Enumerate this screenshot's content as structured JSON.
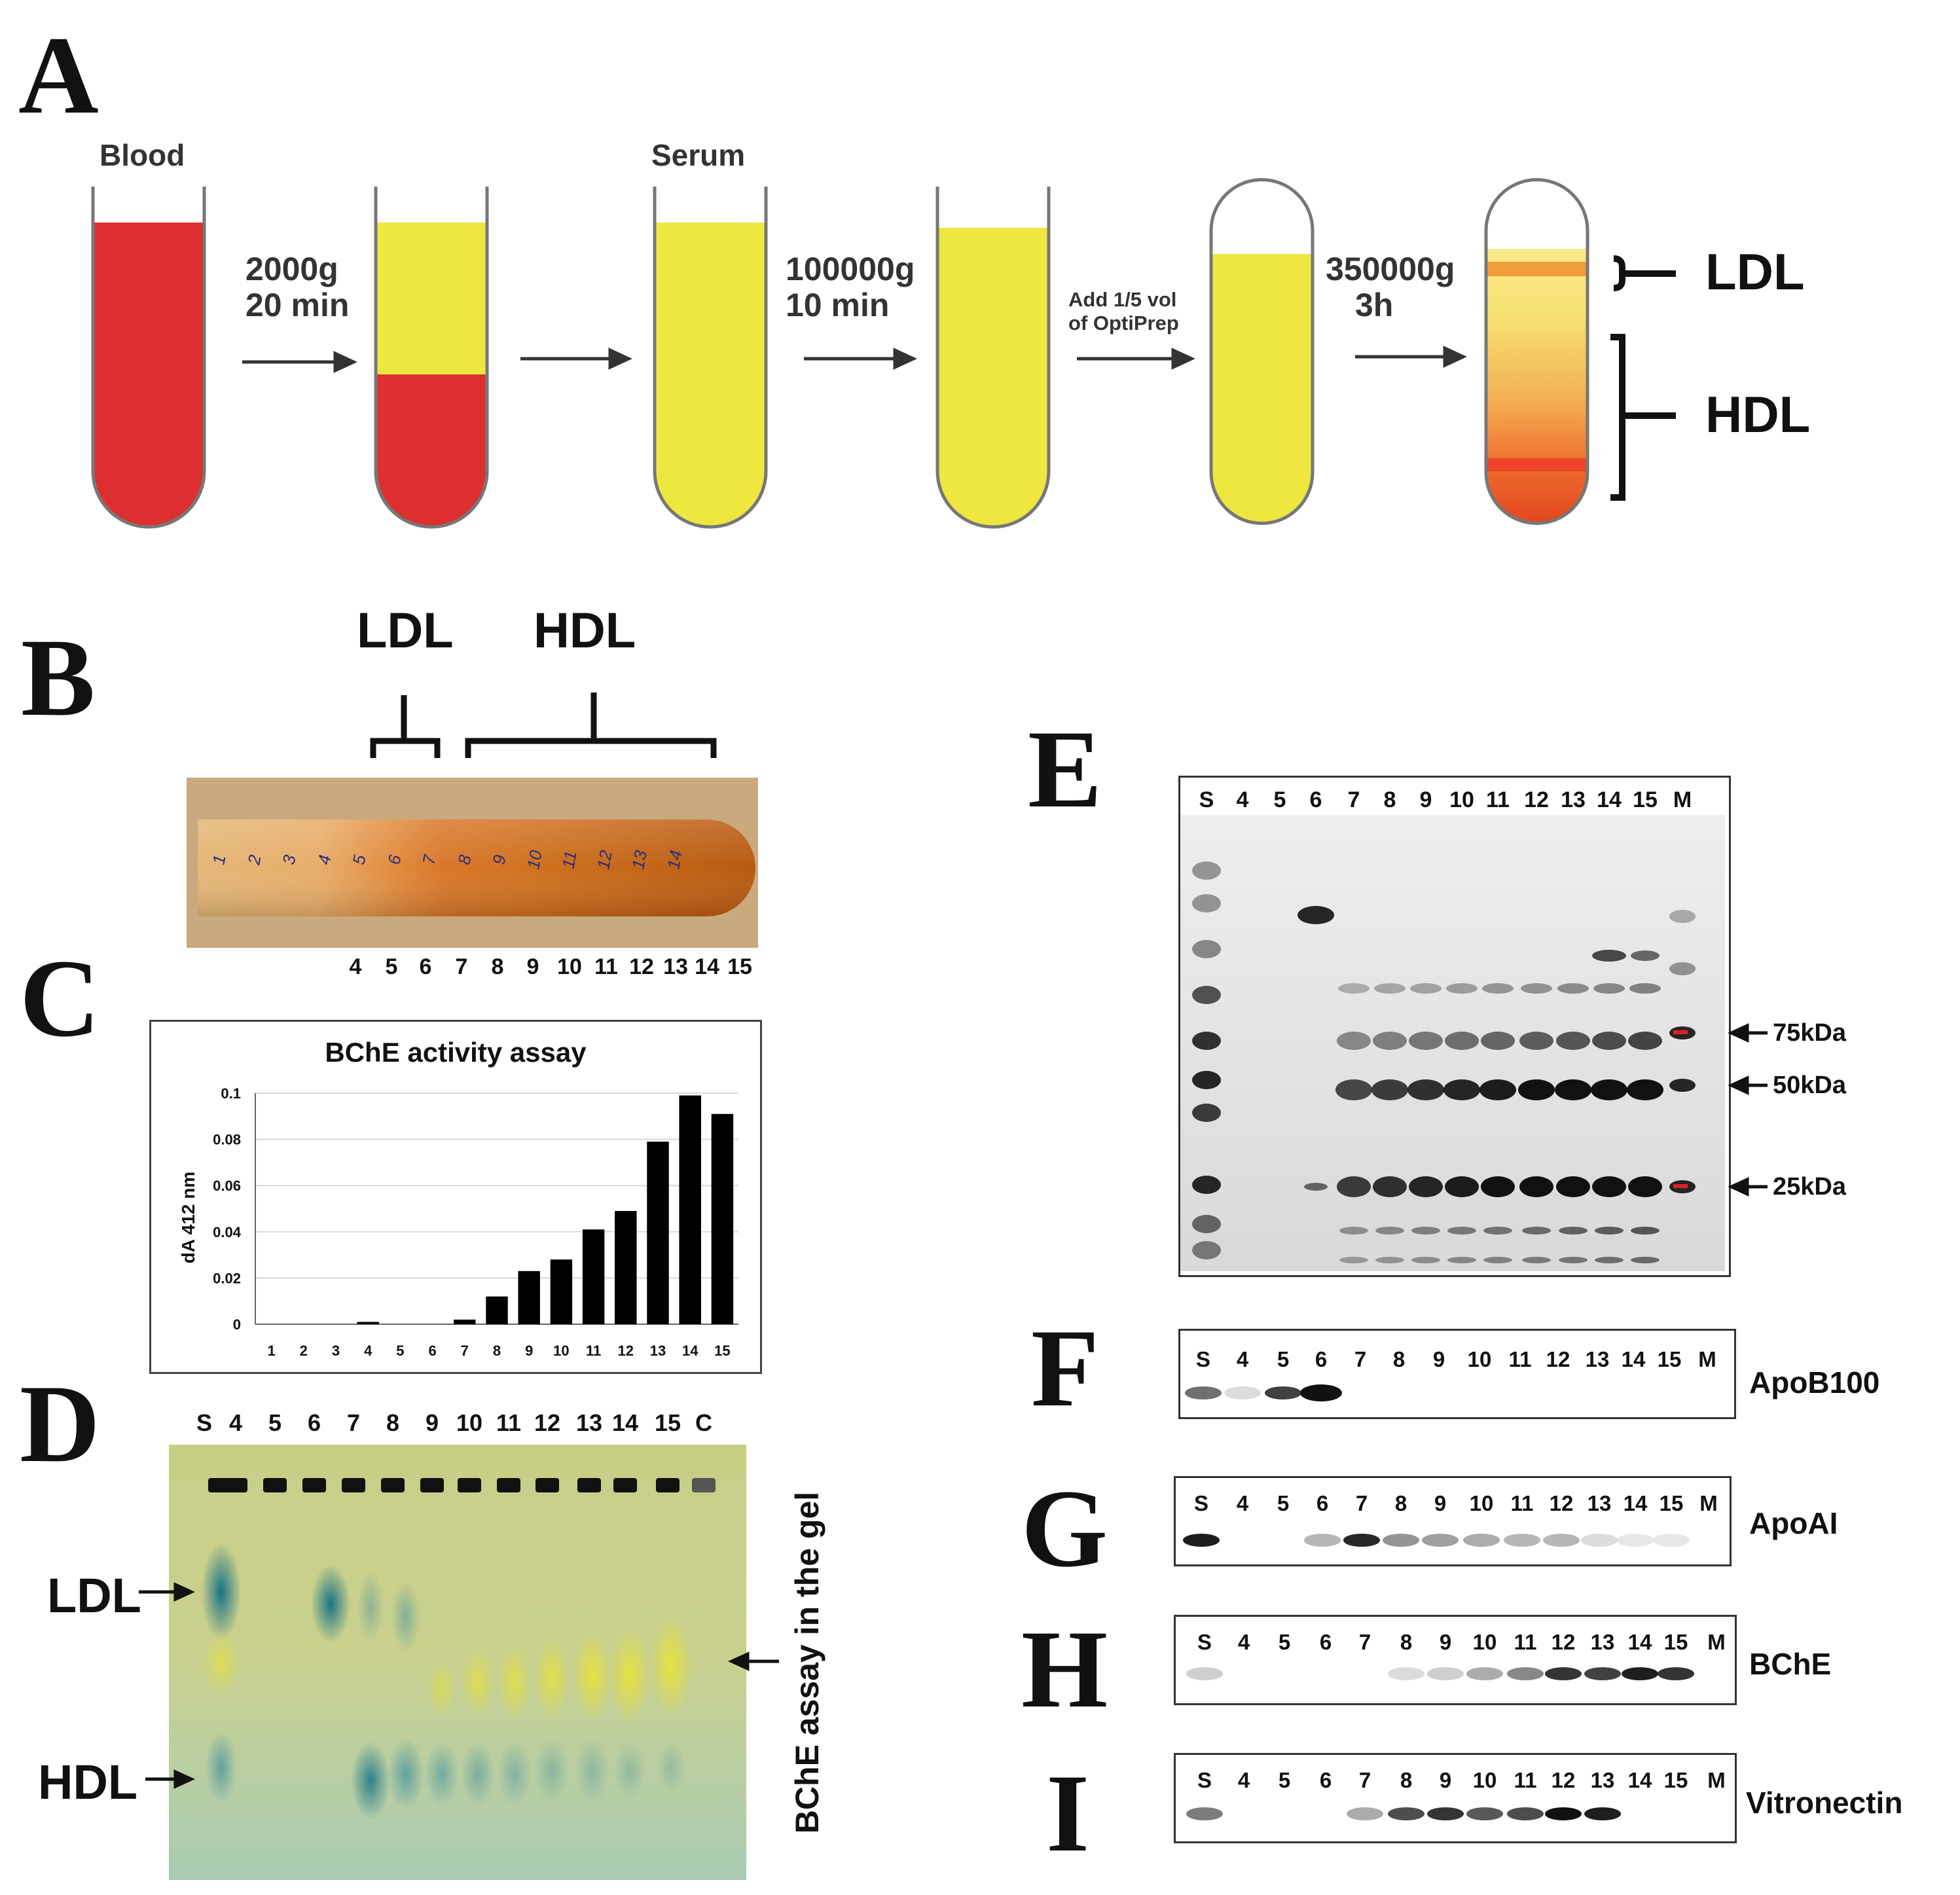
{
  "panels": {
    "a": "A",
    "b": "B",
    "c": "C",
    "d": "D",
    "e": "E",
    "f": "F",
    "g": "G",
    "h": "H",
    "i": "I"
  },
  "panel_a": {
    "tube1_label": "Blood",
    "step1_line1": "2000g",
    "step1_line2": "20 min",
    "tube3_label": "Serum",
    "step2_line1": "100000g",
    "step2_line2": "10 min",
    "step3_line1": "Add 1/5 vol",
    "step3_line2": "of OptiPrep",
    "step4_line1": "350000g",
    "step4_line2": "3h",
    "ldl": "LDL",
    "hdl": "HDL"
  },
  "panel_b": {
    "ldl": "LDL",
    "hdl": "HDL",
    "tube_marks": [
      "1",
      "2",
      "3",
      "4",
      "5",
      "6",
      "7",
      "8",
      "9",
      "10",
      "11",
      "12",
      "13",
      "14"
    ],
    "fractions": [
      "4",
      "5",
      "6",
      "7",
      "8",
      "9",
      "10",
      "11",
      "12",
      "13",
      "14",
      "15"
    ]
  },
  "chart_data": {
    "type": "bar",
    "title": "BChE activity assay",
    "ylabel": "dA 412 nm",
    "xlabel": "",
    "categories": [
      "1",
      "2",
      "3",
      "4",
      "5",
      "6",
      "7",
      "8",
      "9",
      "10",
      "11",
      "12",
      "13",
      "14",
      "15"
    ],
    "values": [
      0,
      0,
      0,
      0.001,
      0,
      0,
      0.002,
      0.012,
      0.023,
      0.028,
      0.041,
      0.049,
      0.079,
      0.099,
      0.091
    ],
    "ylim": [
      0,
      0.1
    ],
    "yticks": [
      "0",
      "0.02",
      "0.04",
      "0.06",
      "0.08",
      "0.1"
    ],
    "grid": true
  },
  "panel_d": {
    "lanes": [
      "S",
      "4",
      "5",
      "6",
      "7",
      "8",
      "9",
      "10",
      "11",
      "12",
      "13",
      "14",
      "15",
      "C"
    ],
    "ldl": "LDL",
    "hdl": "HDL",
    "side_label": "BChE assay in the gel"
  },
  "panel_e": {
    "lanes": [
      "S",
      "4",
      "5",
      "6",
      "7",
      "8",
      "9",
      "10",
      "11",
      "12",
      "13",
      "14",
      "15",
      "M"
    ],
    "markers": [
      "75kDa",
      "50kDa",
      "25kDa"
    ]
  },
  "blots": [
    {
      "letter": "F",
      "protein": "ApoB100",
      "lanes": [
        "S",
        "4",
        "5",
        "6",
        "7",
        "8",
        "9",
        "10",
        "11",
        "12",
        "13",
        "14",
        "15",
        "M"
      ]
    },
    {
      "letter": "G",
      "protein": "ApoAI",
      "lanes": [
        "S",
        "4",
        "5",
        "6",
        "7",
        "8",
        "9",
        "10",
        "11",
        "12",
        "13",
        "14",
        "15",
        "M"
      ]
    },
    {
      "letter": "H",
      "protein": "BChE",
      "lanes": [
        "S",
        "4",
        "5",
        "6",
        "7",
        "8",
        "9",
        "10",
        "11",
        "12",
        "13",
        "14",
        "15",
        "M"
      ]
    },
    {
      "letter": "I",
      "protein": "Vitronectin",
      "lanes": [
        "S",
        "4",
        "5",
        "6",
        "7",
        "8",
        "9",
        "10",
        "11",
        "12",
        "13",
        "14",
        "15",
        "M"
      ]
    }
  ]
}
